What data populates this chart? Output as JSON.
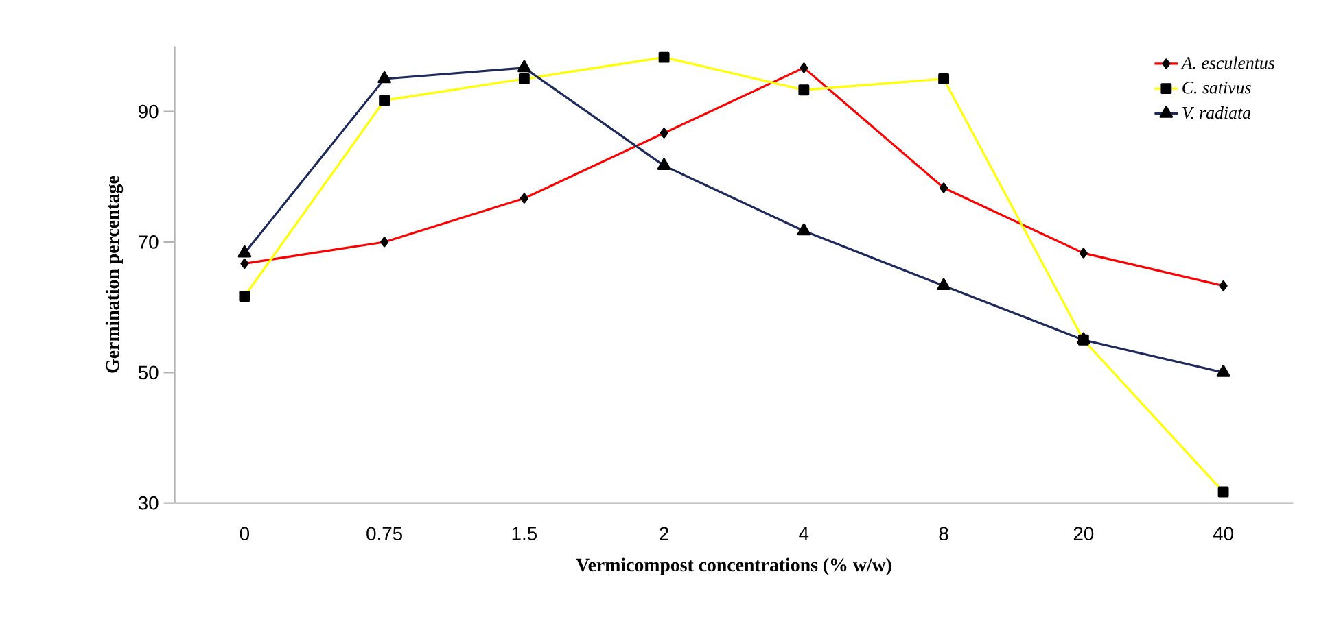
{
  "chart_data": {
    "type": "line",
    "xlabel": "Vermicompost concentrations (% w/w)",
    "ylabel": "Germination percentage",
    "categories": [
      "0",
      "0.75",
      "1.5",
      "2",
      "4",
      "8",
      "20",
      "40"
    ],
    "series": [
      {
        "name": "*A. esculentus*",
        "color": "#ff0000",
        "marker": "diamond",
        "values": [
          66.7,
          70,
          76.7,
          86.7,
          96.7,
          78.3,
          68.3,
          63.3
        ]
      },
      {
        "name": "*C. sativus*",
        "color": "#ffff00",
        "marker": "square",
        "values": [
          61.7,
          91.7,
          95,
          98.3,
          93.3,
          95,
          55,
          31.7
        ]
      },
      {
        "name": "*V. radiata*",
        "color": "#1f2a5c",
        "marker": "triangle",
        "values": [
          68.3,
          95,
          96.7,
          81.7,
          71.7,
          63.3,
          55,
          50
        ]
      }
    ],
    "ylim": [
      30,
      100
    ],
    "yticks": [
      30,
      50,
      70,
      90
    ],
    "grid": false,
    "legend": "top right",
    "line_style": "solid"
  }
}
